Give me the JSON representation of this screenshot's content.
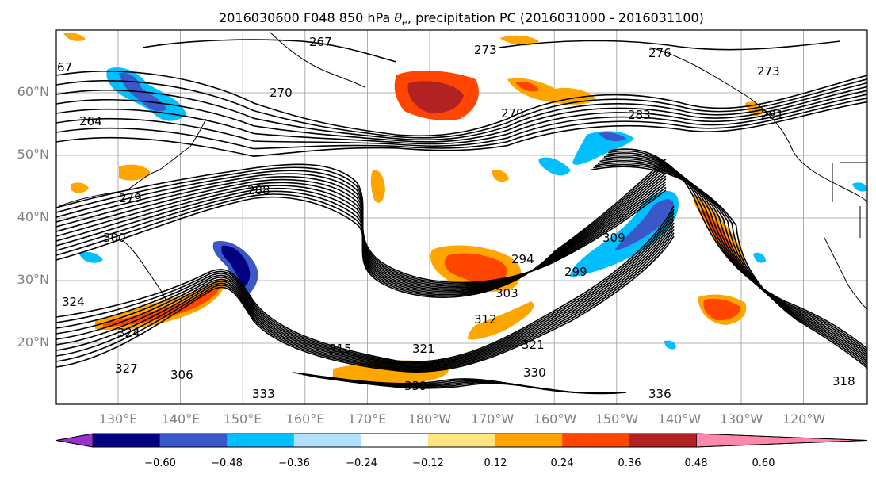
{
  "title": "2016030600 F048 850 hPa θe, precipitation PC (2016031000 - 2016031100)",
  "title_parts": {
    "prefix": "2016030600 F048 850 hPa ",
    "theta": "θ",
    "sub": "e",
    "suffix": ", precipitation PC (2016031000 - 2016031100)"
  },
  "map": {
    "lat_labels": [
      "60°N",
      "50°N",
      "40°N",
      "30°N",
      "20°N"
    ],
    "lon_labels": [
      "130°E",
      "140°E",
      "150°E",
      "160°E",
      "170°E",
      "180°W",
      "170°W",
      "160°W",
      "150°W",
      "140°W",
      "130°W",
      "120°W"
    ],
    "contour_labels": [
      "267",
      "67",
      "264",
      "270",
      "273",
      "279",
      "283",
      "276",
      "273",
      "291",
      "288",
      "279",
      "300",
      "294",
      "299",
      "324",
      "324",
      "315",
      "321",
      "303",
      "309",
      "330",
      "333",
      "339",
      "336",
      "318",
      "327",
      "306",
      "321",
      "312"
    ]
  },
  "colorbar": {
    "colors": [
      "#9932cc",
      "#000080",
      "#3a58c8",
      "#00bfff",
      "#b0e2ff",
      "#ffffff",
      "#ffe680",
      "#ffa500",
      "#ff4500",
      "#b22222",
      "#ff88aa"
    ],
    "tick_labels": [
      "−0.60",
      "−0.48",
      "−0.36",
      "−0.24",
      "−0.12",
      "0.12",
      "0.24",
      "0.36",
      "0.48",
      "0.60"
    ]
  }
}
